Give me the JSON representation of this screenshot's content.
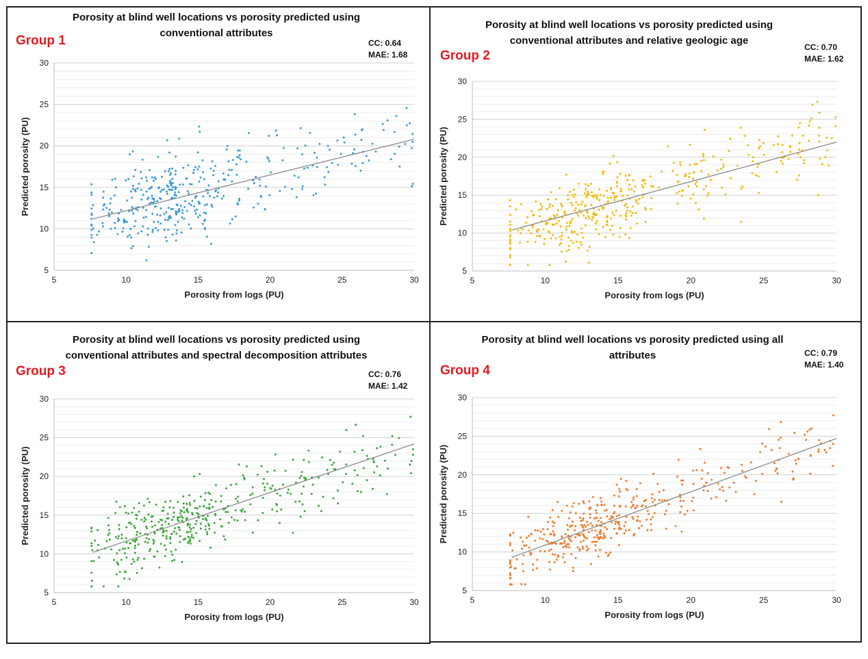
{
  "chart_data": [
    {
      "type": "scatter",
      "group": "Group 1",
      "title": "Porosity at blind well locations vs porosity predicted using conventional attributes",
      "cc": "CC: 0.64",
      "mae": "MAE: 1.68",
      "xlabel": "Porosity from logs (PU)",
      "ylabel": "Predicted porosity (PU)",
      "xlim": [
        5,
        30
      ],
      "ylim": [
        5,
        30
      ],
      "xticks": [
        5,
        10,
        15,
        20,
        25,
        30
      ],
      "yticks": [
        5,
        10,
        15,
        20,
        25,
        30
      ],
      "grid": "horizontal",
      "color": "#3b9ad9",
      "trendline": {
        "x": [
          7.7,
          30
        ],
        "y": [
          11.2,
          20.8
        ]
      },
      "points": {
        "n": 420,
        "slope": 0.43,
        "intercept": 7.9,
        "noise": 2.6,
        "seed": 11
      }
    },
    {
      "type": "scatter",
      "group": "Group 2",
      "title": "Porosity at blind well locations vs porosity predicted using conventional attributes and relative geologic age",
      "cc": "CC: 0.70",
      "mae": "MAE: 1.62",
      "xlabel": "Porosity from logs (PU)",
      "ylabel": "Predicted porosity (PU)",
      "xlim": [
        5,
        30
      ],
      "ylim": [
        5,
        30
      ],
      "xticks": [
        5,
        10,
        15,
        20,
        25,
        30
      ],
      "yticks": [
        5,
        10,
        15,
        20,
        25,
        30
      ],
      "grid": "horizontal",
      "color": "#f5b800",
      "trendline": {
        "x": [
          7.7,
          30
        ],
        "y": [
          10.4,
          22.0
        ]
      },
      "points": {
        "n": 430,
        "slope": 0.52,
        "intercept": 6.4,
        "noise": 2.4,
        "seed": 23
      }
    },
    {
      "type": "scatter",
      "group": "Group 3",
      "title": "Porosity at blind well locations vs porosity predicted using conventional attributes and spectral decomposition attributes",
      "cc": "CC: 0.76",
      "mae": "MAE: 1.42",
      "xlabel": "Porosity from logs (PU)",
      "ylabel": "Predicted porosity (PU)",
      "xlim": [
        5,
        30
      ],
      "ylim": [
        5,
        30
      ],
      "xticks": [
        5,
        10,
        15,
        20,
        25,
        30
      ],
      "yticks": [
        5,
        10,
        15,
        20,
        25,
        30
      ],
      "grid": "horizontal",
      "color": "#3aa63a",
      "trendline": {
        "x": [
          7.7,
          30
        ],
        "y": [
          10.2,
          24.2
        ]
      },
      "points": {
        "n": 430,
        "slope": 0.63,
        "intercept": 5.3,
        "noise": 2.2,
        "seed": 37
      }
    },
    {
      "type": "scatter",
      "group": "Group 4",
      "title": "Porosity at blind well locations vs porosity predicted using  all attributes",
      "cc": "CC: 0.79",
      "mae": "MAE: 1.40",
      "xlabel": "Porosity from logs (PU)",
      "ylabel": "Predicted porosity (PU)",
      "xlim": [
        5,
        30
      ],
      "ylim": [
        5,
        30
      ],
      "xticks": [
        5,
        10,
        15,
        20,
        25,
        30
      ],
      "yticks": [
        5,
        10,
        15,
        20,
        25,
        30
      ],
      "grid": "horizontal",
      "color": "#f07a2a",
      "trendline": {
        "x": [
          7.7,
          30
        ],
        "y": [
          9.3,
          24.7
        ]
      },
      "points": {
        "n": 430,
        "slope": 0.69,
        "intercept": 4.0,
        "noise": 2.2,
        "seed": 53
      }
    }
  ]
}
